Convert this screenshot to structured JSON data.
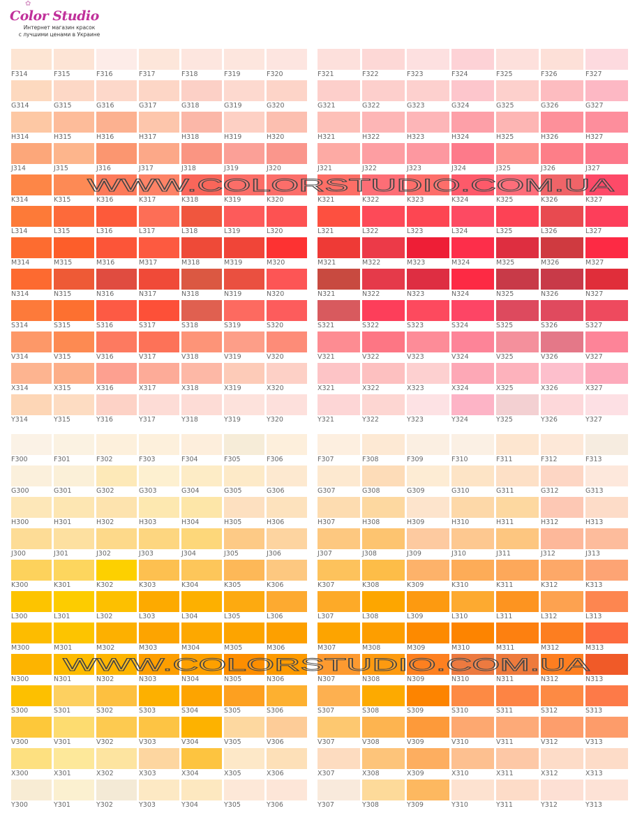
{
  "header": {
    "logo_text": "Color Studio",
    "tagline_line1": "Интернет магазин красок",
    "tagline_line2": "с лучшими ценами в Украине",
    "brand_color": "#c0309a"
  },
  "watermark": "WWW.COLORSTUDIO.COM.UA",
  "quadrants": [
    {
      "id": "top-left",
      "rows": [
        {
          "codes": [
            "F314",
            "F315",
            "F316",
            "F317",
            "F318",
            "F319",
            "F320"
          ],
          "colors": [
            "#fde5d3",
            "#fde4d5",
            "#fdece8",
            "#fde6da",
            "#fde6df",
            "#fde6de",
            "#fde5e0"
          ]
        },
        {
          "codes": [
            "G314",
            "G315",
            "G316",
            "G317",
            "G318",
            "G319",
            "G320"
          ],
          "colors": [
            "#fdd9bf",
            "#fdd8c6",
            "#fdd8ca",
            "#fdd6c6",
            "#fcd0c6",
            "#fdd9cf",
            "#fdd4c8"
          ]
        },
        {
          "codes": [
            "H314",
            "H315",
            "H316",
            "H317",
            "H318",
            "H319",
            "H320"
          ],
          "colors": [
            "#fdc8a4",
            "#fdbc9a",
            "#fcb190",
            "#fdc6ac",
            "#fbb7a8",
            "#fdd0c4",
            "#fcbfb0"
          ]
        },
        {
          "codes": [
            "J314",
            "J315",
            "J316",
            "J317",
            "J318",
            "J319",
            "J320"
          ],
          "colors": [
            "#fca77a",
            "#fdb58c",
            "#fb9670",
            "#fca888",
            "#fa9582",
            "#fba097",
            "#fa968c"
          ]
        },
        {
          "codes": [
            "K314",
            "K315",
            "K316",
            "K317",
            "K318",
            "K319",
            "K320"
          ],
          "colors": [
            "#fd8647",
            "#fd8a55",
            "#fc7a5a",
            "#fd8266",
            "#f9665a",
            "#fb6e68",
            "#fb6e6a"
          ]
        },
        {
          "codes": [
            "L314",
            "L315",
            "L316",
            "L317",
            "L318",
            "L319",
            "L320"
          ],
          "colors": [
            "#fd7a38",
            "#fd6a3a",
            "#fd5a3a",
            "#fd6e56",
            "#f0563e",
            "#fd5b5a",
            "#fd5252"
          ]
        },
        {
          "codes": [
            "M314",
            "M315",
            "M316",
            "M317",
            "M318",
            "M319",
            "M320"
          ],
          "colors": [
            "#fd6c30",
            "#fd5e2a",
            "#fc5538",
            "#fd5a40",
            "#ee4a38",
            "#f04538",
            "#fd3232"
          ]
        },
        {
          "codes": [
            "N314",
            "N315",
            "N316",
            "N317",
            "N318",
            "N319",
            "N320"
          ],
          "colors": [
            "#fd6a30",
            "#ee5a36",
            "#e04c40",
            "#f04a38",
            "#db5842",
            "#ea5040",
            "#fd5555"
          ]
        },
        {
          "codes": [
            "S314",
            "S315",
            "S316",
            "S317",
            "S318",
            "S319",
            "S320"
          ],
          "colors": [
            "#fd7a3a",
            "#fd7030",
            "#fd5a44",
            "#fd5038",
            "#e06050",
            "#fd6a60",
            "#fd5c5c"
          ]
        },
        {
          "codes": [
            "V314",
            "V315",
            "V316",
            "V317",
            "V318",
            "V319",
            "V320"
          ],
          "colors": [
            "#fd9868",
            "#fd8a52",
            "#fd7a60",
            "#fd7258",
            "#fd9478",
            "#fd9e88",
            "#fd8c78"
          ]
        },
        {
          "codes": [
            "X314",
            "X315",
            "X316",
            "X317",
            "X318",
            "X319",
            "X320"
          ],
          "colors": [
            "#fdb490",
            "#fdae88",
            "#fda090",
            "#fdab98",
            "#fdb8a6",
            "#fdcbb8",
            "#fdd0c6"
          ]
        },
        {
          "codes": [
            "Y314",
            "Y315",
            "Y316",
            "Y317",
            "Y318",
            "Y319",
            "Y320"
          ],
          "colors": [
            "#fdd6b6",
            "#fddcc2",
            "#fdd2c6",
            "#fddcd6",
            "#fddcd6",
            "#fde2dc",
            "#fde0dc"
          ]
        }
      ]
    },
    {
      "id": "top-right",
      "rows": [
        {
          "codes": [
            "F321",
            "F322",
            "F323",
            "F324",
            "F325",
            "F326",
            "F327"
          ],
          "colors": [
            "#fde0dc",
            "#fdd8d6",
            "#fde0e0",
            "#fdd2d6",
            "#fde0dc",
            "#fde0d8",
            "#fddadf"
          ]
        },
        {
          "codes": [
            "G321",
            "G322",
            "G323",
            "G324",
            "G325",
            "G326",
            "G327"
          ],
          "colors": [
            "#fdcfcb",
            "#fdcfcc",
            "#fdd0ce",
            "#fdc6cc",
            "#fdd0cc",
            "#fdbcc0",
            "#fdb8c4"
          ]
        },
        {
          "codes": [
            "H321",
            "H322",
            "H323",
            "H324",
            "H325",
            "H326",
            "H327"
          ],
          "colors": [
            "#fdc0b8",
            "#fdb6b6",
            "#fdb6b8",
            "#fda0a8",
            "#fdb6b4",
            "#fd909a",
            "#fd8e9c"
          ]
        },
        {
          "codes": [
            "J321",
            "J322",
            "J323",
            "J324",
            "J325",
            "J326",
            "J327"
          ],
          "colors": [
            "#fdaaa4",
            "#fd9ea2",
            "#fd98a0",
            "#fd7a8a",
            "#fd9490",
            "#fd7e88",
            "#fd788a"
          ]
        },
        {
          "codes": [
            "K321",
            "K322",
            "K323",
            "K324",
            "K325",
            "K326",
            "K327"
          ],
          "colors": [
            "#fd6e66",
            "#fd6e76",
            "#fd6e6a",
            "#fd5a6a",
            "#fd6e7a",
            "#f06468",
            "#fd4a68"
          ]
        },
        {
          "codes": [
            "L321",
            "L322",
            "L323",
            "L324",
            "L325",
            "L326",
            "L327"
          ],
          "colors": [
            "#fd5040",
            "#fd4a58",
            "#fd4652",
            "#fd4a62",
            "#fd4255",
            "#e84a50",
            "#fd3e5a"
          ]
        },
        {
          "codes": [
            "M321",
            "M322",
            "M323",
            "M324",
            "M325",
            "M326",
            "M327"
          ],
          "colors": [
            "#ee3a36",
            "#ec3a48",
            "#ee1e36",
            "#fd2e4a",
            "#de2e40",
            "#cf3a40",
            "#fd2a44"
          ]
        },
        {
          "codes": [
            "N321",
            "N322",
            "N323",
            "N324",
            "N325",
            "N326",
            "N327"
          ],
          "colors": [
            "#c84a40",
            "#e53a4a",
            "#de2e42",
            "#fd2a44",
            "#c83a48",
            "#c83a48",
            "#e02e3a"
          ]
        },
        {
          "codes": [
            "S321",
            "S322",
            "S323",
            "S324",
            "S325",
            "S326",
            "S327"
          ],
          "colors": [
            "#d85a5e",
            "#fd3e5a",
            "#fd4a5e",
            "#fd4565",
            "#dd4a5e",
            "#e04a5e",
            "#ee4a5e"
          ]
        },
        {
          "codes": [
            "V321",
            "V322",
            "V323",
            "V324",
            "V325",
            "V326",
            "V327"
          ],
          "colors": [
            "#fd8c92",
            "#fd7684",
            "#fd8c98",
            "#fd8498",
            "#f4909c",
            "#e47888",
            "#fd8498"
          ]
        },
        {
          "codes": [
            "X321",
            "X322",
            "X323",
            "X324",
            "X325",
            "X326",
            "X327"
          ],
          "colors": [
            "#fdc4c6",
            "#fdc0c0",
            "#fdd0d0",
            "#fda8b6",
            "#fdb2bc",
            "#fdbfcc",
            "#fdaabb"
          ]
        },
        {
          "codes": [
            "Y321",
            "Y322",
            "Y323",
            "Y324",
            "Y325",
            "Y326",
            "Y327"
          ],
          "colors": [
            "#fdd6d6",
            "#fdd6d2",
            "#fde2e4",
            "#fdb4c6",
            "#f3d0d2",
            "#fdd8da",
            "#fde0e4"
          ]
        }
      ]
    },
    {
      "id": "bottom-left",
      "rows": [
        {
          "codes": [
            "F300",
            "F301",
            "F302",
            "F303",
            "F304",
            "F305",
            "F306"
          ],
          "colors": [
            "#fbf2e6",
            "#fbf2e2",
            "#fdf0dc",
            "#fdf0dc",
            "#fdeedc",
            "#f6ecd8",
            "#fdefdc"
          ]
        },
        {
          "codes": [
            "G300",
            "G301",
            "G302",
            "G303",
            "G304",
            "G305",
            "G306"
          ],
          "colors": [
            "#fbf0dc",
            "#fbf0d8",
            "#fde9b8",
            "#fdf0d0",
            "#fdecc6",
            "#fdeac8",
            "#fde9d0"
          ]
        },
        {
          "codes": [
            "H300",
            "H301",
            "H302",
            "H303",
            "H304",
            "H305",
            "H306"
          ],
          "colors": [
            "#fde7b8",
            "#fde6b2",
            "#fde3ae",
            "#fde8b0",
            "#fde6a8",
            "#fde0c0",
            "#fde2bd"
          ]
        },
        {
          "codes": [
            "J300",
            "J301",
            "J302",
            "J303",
            "J304",
            "J305",
            "J306"
          ],
          "colors": [
            "#fddc96",
            "#fde0a0",
            "#fdd98a",
            "#fdd680",
            "#fdd77a",
            "#fdca86",
            "#fdd4a0"
          ]
        },
        {
          "codes": [
            "K300",
            "K301",
            "K302",
            "K303",
            "K304",
            "K305",
            "K306"
          ],
          "colors": [
            "#fdd25c",
            "#fdd65e",
            "#fdd000",
            "#fdc050",
            "#fdc65a",
            "#fdb858",
            "#fdc880"
          ]
        },
        {
          "codes": [
            "L300",
            "L301",
            "L302",
            "L303",
            "L304",
            "L305",
            "L306"
          ],
          "colors": [
            "#fdc400",
            "#fdcc00",
            "#fdc000",
            "#fdaa00",
            "#fdb000",
            "#fdaa10",
            "#fdaa30"
          ]
        },
        {
          "codes": [
            "M300",
            "M301",
            "M302",
            "M303",
            "M304",
            "M305",
            "M306"
          ],
          "colors": [
            "#fdbc00",
            "#fdc400",
            "#fdb000",
            "#fda400",
            "#fda800",
            "#fda400",
            "#fda000"
          ]
        },
        {
          "codes": [
            "N300",
            "N301",
            "N302",
            "N303",
            "N304",
            "N305",
            "N306"
          ],
          "colors": [
            "#fdb400",
            "#fdbb00",
            "#fdb400",
            "#fd9e00",
            "#fda000",
            "#fd8e00",
            "#fd9a00"
          ]
        },
        {
          "codes": [
            "S300",
            "S301",
            "S302",
            "S303",
            "S304",
            "S305",
            "S306"
          ],
          "colors": [
            "#fdc000",
            "#fdd060",
            "#fdc040",
            "#fdb000",
            "#fda400",
            "#fda020",
            "#fdb030"
          ]
        },
        {
          "codes": [
            "V300",
            "V301",
            "V302",
            "V303",
            "V304",
            "V305",
            "V306"
          ],
          "colors": [
            "#fdc83a",
            "#fddc70",
            "#fdca50",
            "#fdc444",
            "#fdb200",
            "#fdd8a0",
            "#fdcc98"
          ]
        },
        {
          "codes": [
            "X300",
            "X301",
            "X302",
            "X303",
            "X304",
            "X305",
            "X306"
          ],
          "colors": [
            "#fde080",
            "#fde89a",
            "#fde4a0",
            "#fdd6a0",
            "#fdc440",
            "#fde8c8",
            "#fde0b8"
          ]
        },
        {
          "codes": [
            "Y300",
            "Y301",
            "Y302",
            "Y303",
            "Y304",
            "Y305",
            "Y306"
          ],
          "colors": [
            "#f8ecd4",
            "#fbf0d0",
            "#f4ead6",
            "#fde9c4",
            "#fde8c0",
            "#fde8d8",
            "#fde6d8"
          ]
        }
      ]
    },
    {
      "id": "bottom-right",
      "rows": [
        {
          "codes": [
            "F307",
            "F308",
            "F309",
            "F310",
            "F311",
            "F312",
            "F313"
          ],
          "colors": [
            "#fdefe0",
            "#fde9d4",
            "#fbefe2",
            "#fbf0e4",
            "#fde6d0",
            "#fde8d8",
            "#f6ece0"
          ]
        },
        {
          "codes": [
            "G307",
            "G308",
            "G309",
            "G310",
            "G311",
            "G312",
            "G313"
          ],
          "colors": [
            "#fde9d0",
            "#fddcb8",
            "#fdecd4",
            "#fde4c6",
            "#fde0c6",
            "#fdd6c4",
            "#fde8dc"
          ]
        },
        {
          "codes": [
            "H307",
            "H308",
            "H309",
            "H310",
            "H311",
            "H312",
            "H313"
          ],
          "colors": [
            "#fddcb0",
            "#fdd8a0",
            "#fde4cc",
            "#fdd8a8",
            "#fdd8a0",
            "#fdc8b4",
            "#fddcc8"
          ]
        },
        {
          "codes": [
            "J307",
            "J308",
            "J309",
            "J310",
            "J311",
            "J312",
            "J313"
          ],
          "colors": [
            "#fdc880",
            "#fdc470",
            "#fdcaa0",
            "#fdc890",
            "#fdc680",
            "#fdb89a",
            "#fdbc9c"
          ]
        },
        {
          "codes": [
            "K307",
            "K308",
            "K309",
            "K310",
            "K311",
            "K312",
            "K313"
          ],
          "colors": [
            "#fdc25c",
            "#fdbd48",
            "#fdb26a",
            "#fdac58",
            "#fda85a",
            "#fda868",
            "#fda474"
          ]
        },
        {
          "codes": [
            "L307",
            "L308",
            "L309",
            "L310",
            "L311",
            "L312",
            "L313"
          ],
          "colors": [
            "#fdaa28",
            "#fda600",
            "#fd9a10",
            "#fdaa30",
            "#fd9420",
            "#fda250",
            "#fd8650"
          ]
        },
        {
          "codes": [
            "M307",
            "M308",
            "M309",
            "M310",
            "M311",
            "M312",
            "M313"
          ],
          "colors": [
            "#fda400",
            "#fd9e00",
            "#fd8a00",
            "#fd8400",
            "#fd8010",
            "#fd7e20",
            "#fd6a3e"
          ]
        },
        {
          "codes": [
            "N307",
            "N308",
            "N309",
            "N310",
            "N311",
            "N312",
            "N313"
          ],
          "colors": [
            "#fd9a30",
            "#fd9a10",
            "#fd8020",
            "#ec7a40",
            "#ee7a3c",
            "#fd7e20",
            "#f05a28"
          ]
        },
        {
          "codes": [
            "S307",
            "S308",
            "S309",
            "S310",
            "S311",
            "S312",
            "S313"
          ],
          "colors": [
            "#fdb050",
            "#fdaa00",
            "#fd8400",
            "#fd8a44",
            "#fd8444",
            "#fd8a44",
            "#fd7a48"
          ]
        },
        {
          "codes": [
            "V307",
            "V308",
            "V309",
            "V310",
            "V311",
            "V312",
            "V313"
          ],
          "colors": [
            "#fdc870",
            "#fdb450",
            "#fd9a3a",
            "#fda870",
            "#fdaa78",
            "#fd9e6c",
            "#fd9c6a"
          ]
        },
        {
          "codes": [
            "X307",
            "X308",
            "X309",
            "X310",
            "X311",
            "X312",
            "X313"
          ],
          "colors": [
            "#fddcc0",
            "#fdc47a",
            "#fdae60",
            "#fdc090",
            "#fdc8a6",
            "#fddcc8",
            "#fddcc8"
          ]
        },
        {
          "codes": [
            "Y307",
            "Y308",
            "Y309",
            "Y310",
            "Y311",
            "Y312",
            "Y313"
          ],
          "colors": [
            "#f9eadc",
            "#fdda9a",
            "#fdb860",
            "#fde2d0",
            "#fddcc8",
            "#fde0d4",
            "#fde2d6"
          ]
        }
      ]
    }
  ]
}
